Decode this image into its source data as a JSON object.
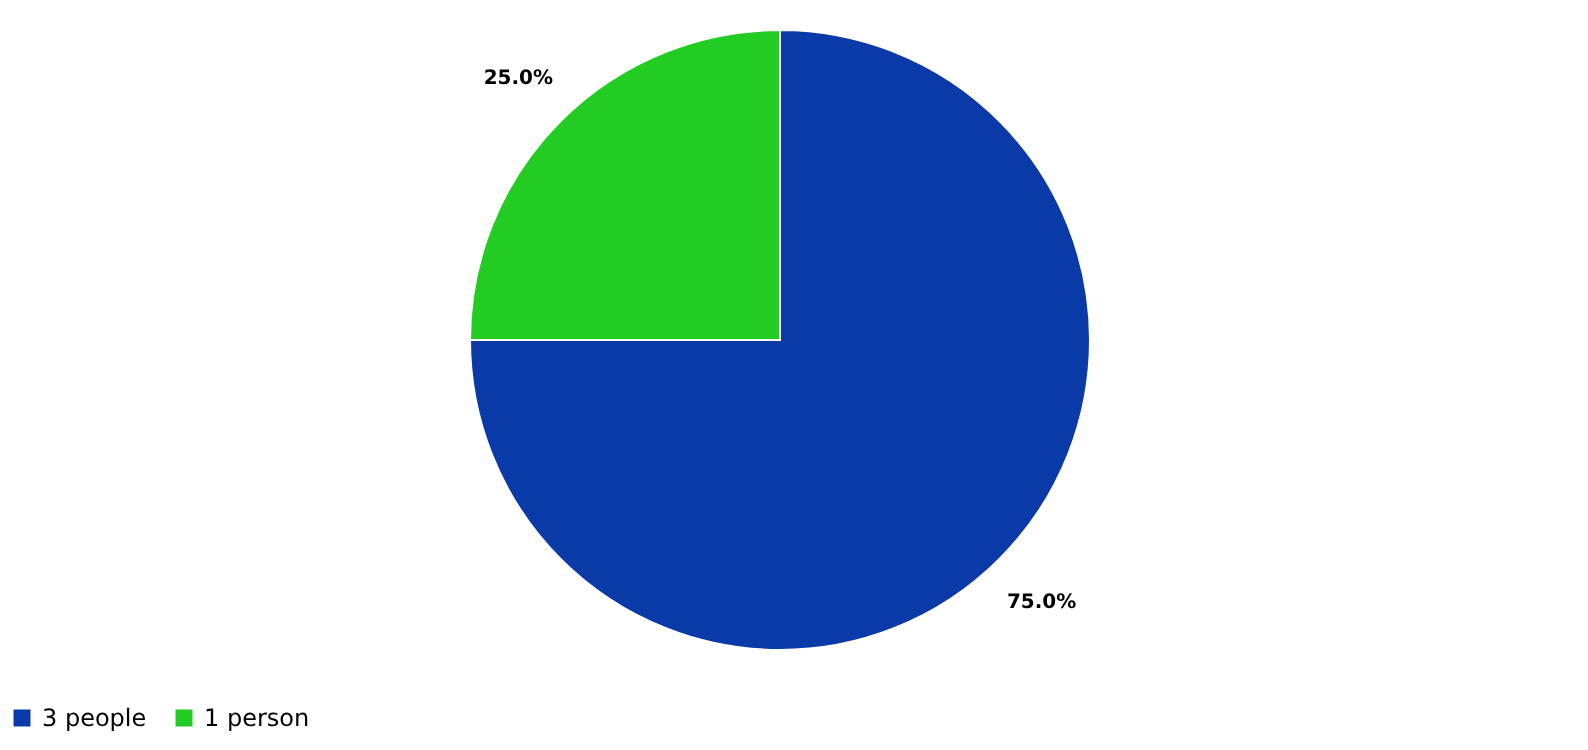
{
  "chart_data": {
    "type": "pie",
    "categories": [
      "3 people",
      "1 person"
    ],
    "values": [
      75,
      25
    ],
    "colors": [
      "#0a3aa8",
      "#22cc22"
    ],
    "value_labels": [
      "75.0%",
      "25.0%"
    ],
    "legend": "bottom"
  }
}
